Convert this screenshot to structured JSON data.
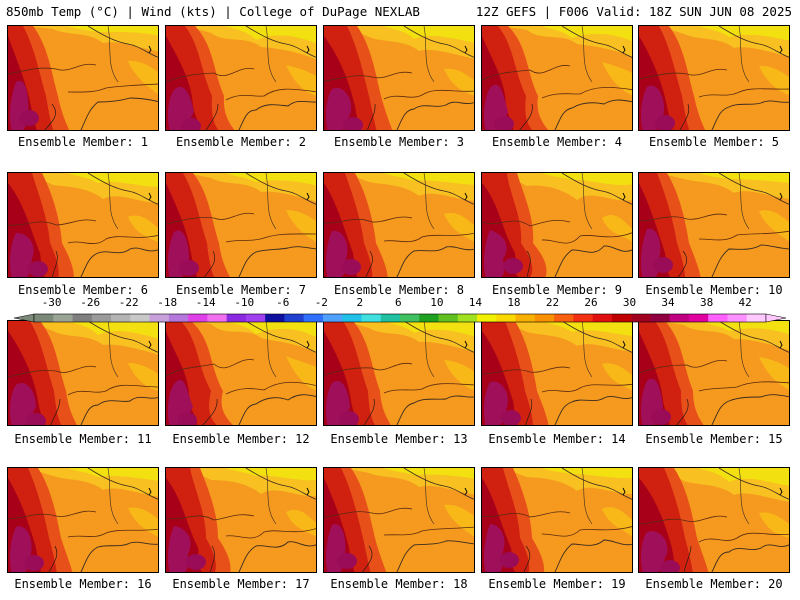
{
  "header": {
    "left": "850mb Temp (°C) | Wind (kts) | College of DuPage NEXLAB",
    "right": "12Z GEFS | F006 Valid: 18Z SUN JUN 08 2025"
  },
  "panels": [
    {
      "label": "Ensemble Member: 1"
    },
    {
      "label": "Ensemble Member: 2"
    },
    {
      "label": "Ensemble Member: 3"
    },
    {
      "label": "Ensemble Member: 4"
    },
    {
      "label": "Ensemble Member: 5"
    },
    {
      "label": "Ensemble Member: 6"
    },
    {
      "label": "Ensemble Member: 7"
    },
    {
      "label": "Ensemble Member: 8"
    },
    {
      "label": "Ensemble Member: 9"
    },
    {
      "label": "Ensemble Member: 10"
    },
    {
      "label": "Ensemble Member: 11"
    },
    {
      "label": "Ensemble Member: 12"
    },
    {
      "label": "Ensemble Member: 13"
    },
    {
      "label": "Ensemble Member: 14"
    },
    {
      "label": "Ensemble Member: 15"
    },
    {
      "label": "Ensemble Member: 16"
    },
    {
      "label": "Ensemble Member: 17"
    },
    {
      "label": "Ensemble Member: 18"
    },
    {
      "label": "Ensemble Member: 19"
    },
    {
      "label": "Ensemble Member: 20"
    }
  ],
  "colorbar": {
    "ticks": [
      "-30",
      "-26",
      "-22",
      "-18",
      "-14",
      "-10",
      "-6",
      "-2",
      "2",
      "6",
      "10",
      "14",
      "18",
      "22",
      "26",
      "30",
      "34",
      "38",
      "42"
    ],
    "colors": [
      "#7b8a78",
      "#9aa496",
      "#7f7f7f",
      "#9a9a9a",
      "#b4b4b4",
      "#c8c8c8",
      "#c8a0dc",
      "#b478dc",
      "#e040e8",
      "#f070f0",
      "#8a2be2",
      "#a040f0",
      "#1010a0",
      "#2040d0",
      "#3070ff",
      "#50a0ff",
      "#20c0e8",
      "#40e0e0",
      "#20c0a0",
      "#40c060",
      "#20a020",
      "#60c020",
      "#a0e020",
      "#f0f000",
      "#f8d800",
      "#f8b000",
      "#f89000",
      "#f86010",
      "#f03010",
      "#e01010",
      "#c00000",
      "#a00020",
      "#900040",
      "#c00080",
      "#e000a0",
      "#ff60ff",
      "#ff90ff",
      "#ffc8ff"
    ]
  }
}
